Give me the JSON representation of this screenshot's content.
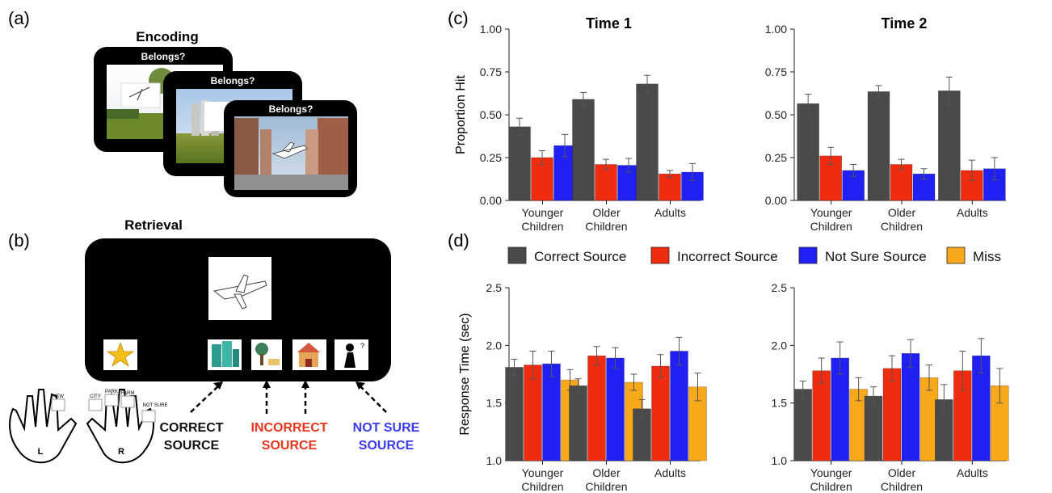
{
  "panels": {
    "a": {
      "label": "(a)",
      "title": "Encoding",
      "prompt": "Belongs?"
    },
    "b": {
      "label": "(b)",
      "title": "Retrieval",
      "hand_left": "L",
      "hand_right": "R",
      "key_labels": [
        "NEW",
        "CITY",
        "PARK",
        "FARM",
        "NOT SURE"
      ],
      "source_labels": [
        {
          "lines": [
            "CORRECT",
            "SOURCE"
          ],
          "color": "#111111"
        },
        {
          "lines": [
            "INCORRECT",
            "SOURCE"
          ],
          "color": "#e8361c"
        },
        {
          "lines": [
            "NOT SURE",
            "SOURCE"
          ],
          "color": "#3a3af0"
        }
      ]
    },
    "c": {
      "label": "(c)"
    },
    "d": {
      "label": "(d)"
    }
  },
  "legend": [
    {
      "name": "Correct Source",
      "color": "#4a4a4a"
    },
    {
      "name": "Incorrect Source",
      "color": "#f02c10"
    },
    {
      "name": "Not Sure Source",
      "color": "#2020f5"
    },
    {
      "name": "Miss",
      "color": "#f7a81b"
    }
  ],
  "chart_data": [
    {
      "type": "bar",
      "title": "Time 1",
      "ylabel": "Proportion Hit",
      "xlabel": "",
      "ylim": [
        0,
        1
      ],
      "yticks": [
        "0.00",
        "0.25",
        "0.50",
        "0.75",
        "1.00"
      ],
      "categories": [
        [
          "Younger",
          "Children"
        ],
        [
          "Older",
          "Children"
        ],
        [
          "Adults"
        ]
      ],
      "series": [
        {
          "name": "Correct Source",
          "values": [
            0.43,
            0.59,
            0.68
          ],
          "errors": [
            0.05,
            0.04,
            0.05
          ]
        },
        {
          "name": "Incorrect Source",
          "values": [
            0.25,
            0.21,
            0.155
          ],
          "errors": [
            0.04,
            0.03,
            0.02
          ]
        },
        {
          "name": "Not Sure Source",
          "values": [
            0.32,
            0.205,
            0.165
          ],
          "errors": [
            0.065,
            0.04,
            0.05
          ]
        }
      ]
    },
    {
      "type": "bar",
      "title": "Time 2",
      "ylabel": "",
      "xlabel": "",
      "ylim": [
        0,
        1
      ],
      "yticks": [
        "0.00",
        "0.25",
        "0.50",
        "0.75",
        "1.00"
      ],
      "categories": [
        [
          "Younger",
          "Children"
        ],
        [
          "Older",
          "Children"
        ],
        [
          "Adults"
        ]
      ],
      "series": [
        {
          "name": "Correct Source",
          "values": [
            0.565,
            0.635,
            0.64
          ],
          "errors": [
            0.055,
            0.035,
            0.08
          ]
        },
        {
          "name": "Incorrect Source",
          "values": [
            0.26,
            0.21,
            0.175
          ],
          "errors": [
            0.05,
            0.03,
            0.06
          ]
        },
        {
          "name": "Not Sure Source",
          "values": [
            0.175,
            0.155,
            0.185
          ],
          "errors": [
            0.035,
            0.03,
            0.065
          ]
        }
      ]
    },
    {
      "type": "bar",
      "title": "",
      "ylabel": "Response Time (sec)",
      "xlabel": "",
      "ylim": [
        1,
        2.5
      ],
      "yticks": [
        "1.0",
        "1.5",
        "2.0",
        "2.5"
      ],
      "categories": [
        [
          "Younger",
          "Children"
        ],
        [
          "Older",
          "Children"
        ],
        [
          "Adults"
        ]
      ],
      "series": [
        {
          "name": "Correct Source",
          "values": [
            1.81,
            1.65,
            1.45
          ],
          "errors": [
            0.07,
            0.06,
            0.08
          ]
        },
        {
          "name": "Incorrect Source",
          "values": [
            1.83,
            1.91,
            1.82
          ],
          "errors": [
            0.12,
            0.08,
            0.1
          ]
        },
        {
          "name": "Not Sure Source",
          "values": [
            1.84,
            1.89,
            1.95
          ],
          "errors": [
            0.11,
            0.09,
            0.12
          ]
        },
        {
          "name": "Miss",
          "values": [
            1.7,
            1.68,
            1.64
          ],
          "errors": [
            0.09,
            0.07,
            0.12
          ]
        }
      ]
    },
    {
      "type": "bar",
      "title": "",
      "ylabel": "",
      "xlabel": "",
      "ylim": [
        1,
        2.5
      ],
      "yticks": [
        "1.0",
        "1.5",
        "2.0",
        "2.5"
      ],
      "categories": [
        [
          "Younger",
          "Children"
        ],
        [
          "Older",
          "Children"
        ],
        [
          "Adults"
        ]
      ],
      "series": [
        {
          "name": "Correct Source",
          "values": [
            1.62,
            1.56,
            1.53
          ],
          "errors": [
            0.07,
            0.08,
            0.13
          ]
        },
        {
          "name": "Incorrect Source",
          "values": [
            1.78,
            1.8,
            1.78
          ],
          "errors": [
            0.11,
            0.11,
            0.17
          ]
        },
        {
          "name": "Not Sure Source",
          "values": [
            1.89,
            1.93,
            1.91
          ],
          "errors": [
            0.14,
            0.12,
            0.15
          ]
        },
        {
          "name": "Miss",
          "values": [
            1.62,
            1.72,
            1.65
          ],
          "errors": [
            0.1,
            0.11,
            0.15
          ]
        }
      ]
    }
  ]
}
